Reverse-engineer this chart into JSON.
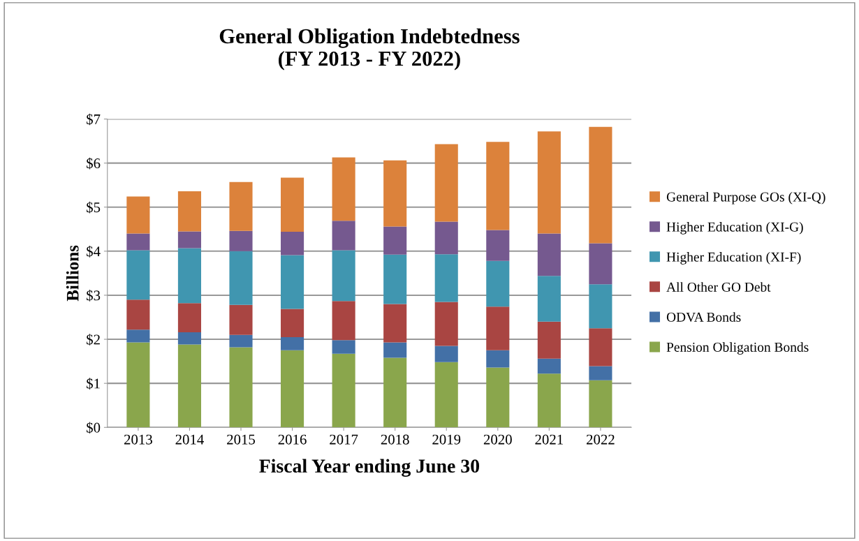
{
  "chart_data": {
    "type": "bar",
    "stacked": true,
    "title": "General Obligation Indebtedness\n(FY 2013 - FY 2022)",
    "xlabel": "Fiscal Year ending June 30",
    "ylabel": "Billions",
    "categories": [
      "2013",
      "2014",
      "2015",
      "2016",
      "2017",
      "2018",
      "2019",
      "2020",
      "2021",
      "2022"
    ],
    "series": [
      {
        "name": "Pension Obligation Bonds",
        "color": "#8aa64c",
        "values": [
          1.93,
          1.88,
          1.82,
          1.75,
          1.67,
          1.58,
          1.48,
          1.36,
          1.22,
          1.07
        ]
      },
      {
        "name": "ODVA Bonds",
        "color": "#4370a6",
        "values": [
          0.29,
          0.28,
          0.28,
          0.3,
          0.31,
          0.35,
          0.37,
          0.39,
          0.34,
          0.32
        ]
      },
      {
        "name": "All Other GO Debt",
        "color": "#a94542",
        "values": [
          0.68,
          0.66,
          0.68,
          0.64,
          0.89,
          0.87,
          1.0,
          0.99,
          0.84,
          0.86
        ]
      },
      {
        "name": "Higher Education (XI-F)",
        "color": "#4096b0",
        "values": [
          1.12,
          1.25,
          1.22,
          1.22,
          1.15,
          1.12,
          1.08,
          1.04,
          1.04,
          1.0
        ]
      },
      {
        "name": "Higher Education (XI-G)",
        "color": "#75598f",
        "values": [
          0.38,
          0.38,
          0.46,
          0.53,
          0.67,
          0.64,
          0.74,
          0.7,
          0.96,
          0.93
        ]
      },
      {
        "name": "General Purpose GOs (XI-Q)",
        "color": "#dc823b",
        "values": [
          0.84,
          0.91,
          1.11,
          1.23,
          1.44,
          1.5,
          1.76,
          2.0,
          2.32,
          2.64
        ]
      }
    ],
    "ylim": [
      0,
      7
    ],
    "yticks": [
      {
        "value": 0,
        "label": "$0"
      },
      {
        "value": 1,
        "label": "$1"
      },
      {
        "value": 2,
        "label": "$2"
      },
      {
        "value": 3,
        "label": "$3"
      },
      {
        "value": 4,
        "label": "$4"
      },
      {
        "value": 5,
        "label": "$5"
      },
      {
        "value": 6,
        "label": "$6"
      },
      {
        "value": 7,
        "label": "$7"
      }
    ],
    "grid": "y",
    "legend": "right"
  }
}
